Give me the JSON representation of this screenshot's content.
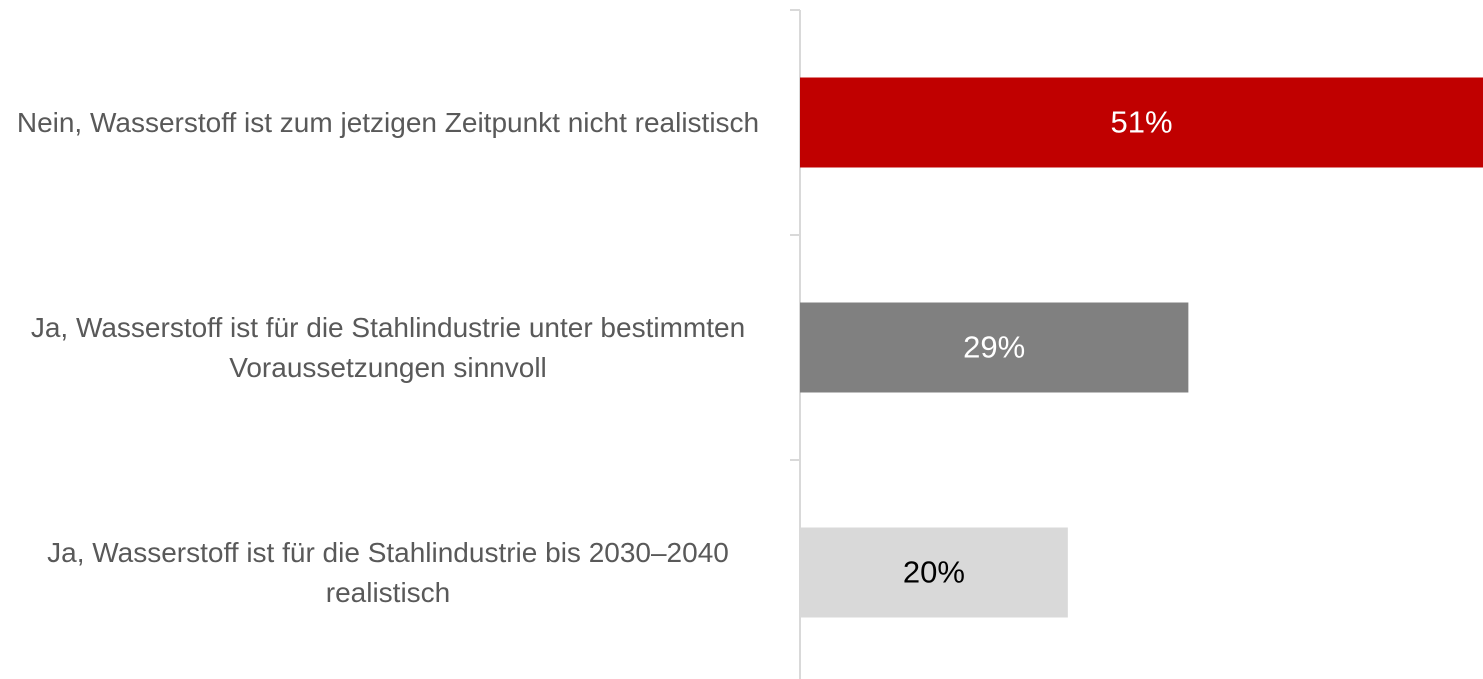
{
  "chart_data": {
    "type": "barh",
    "categories": [
      "Nein, Wasserstoff ist zum jetzigen Zeitpunkt nicht realistisch",
      "Ja, Wasserstoff ist für die Stahlindustrie unter bestimmten Voraussetzungen sinnvoll",
      "Ja, Wasserstoff ist für die Stahlindustrie bis 2030–2040 realistisch"
    ],
    "values": [
      51,
      29,
      20
    ],
    "value_labels": [
      "51%",
      "29%",
      "20%"
    ],
    "colors": [
      "#c00000",
      "#808080",
      "#d9d9d9"
    ],
    "label_colors": [
      "#ffffff",
      "#ffffff",
      "#000000"
    ],
    "xlim": [
      0,
      51
    ]
  }
}
